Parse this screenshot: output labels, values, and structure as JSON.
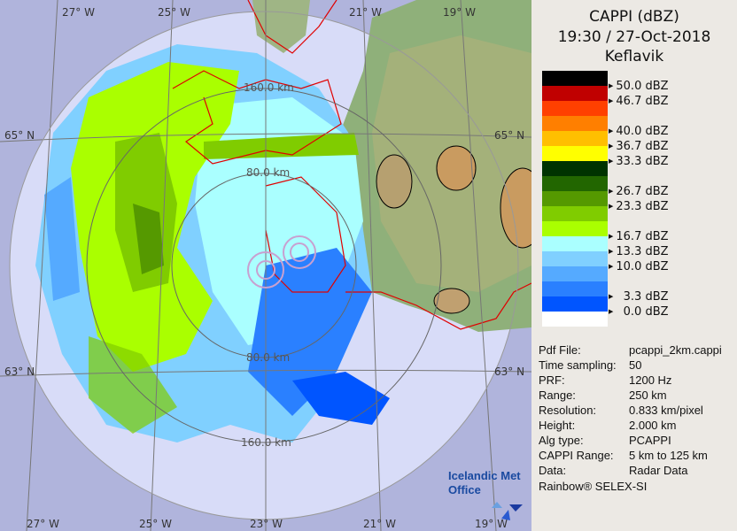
{
  "header": {
    "product": "CAPPI (dBZ)",
    "datetime": "19:30 / 27-Oct-2018",
    "site": "Keflavik"
  },
  "legend": [
    {
      "color": "#000000",
      "label": "50.0 dBZ"
    },
    {
      "color": "#c00000",
      "label": "46.7 dBZ"
    },
    {
      "color": "#ff4000",
      "label": ""
    },
    {
      "color": "#ff7f00",
      "label": "40.0 dBZ"
    },
    {
      "color": "#ffbf00",
      "label": "36.7 dBZ"
    },
    {
      "color": "#ffff00",
      "label": "33.3 dBZ"
    },
    {
      "color": "#003300",
      "label": ""
    },
    {
      "color": "#226600",
      "label": "26.7 dBZ"
    },
    {
      "color": "#559900",
      "label": "23.3 dBZ"
    },
    {
      "color": "#80cc00",
      "label": ""
    },
    {
      "color": "#aaff00",
      "label": "16.7 dBZ"
    },
    {
      "color": "#aaffff",
      "label": "13.3 dBZ"
    },
    {
      "color": "#80d0ff",
      "label": "10.0 dBZ"
    },
    {
      "color": "#55aaff",
      "label": ""
    },
    {
      "color": "#2a80ff",
      "label": "  3.3 dBZ"
    },
    {
      "color": "#0055ff",
      "label": "  0.0 dBZ"
    },
    {
      "color": "#ffffff",
      "label": ""
    }
  ],
  "info": [
    {
      "key": "Pdf File:",
      "value": "pcappi_2km.cappi"
    },
    {
      "key": "Time sampling:",
      "value": "50"
    },
    {
      "key": "PRF:",
      "value": "1200 Hz"
    },
    {
      "key": "Range:",
      "value": "250 km"
    },
    {
      "key": "Resolution:",
      "value": "0.833 km/pixel"
    },
    {
      "key": "Height:",
      "value": "2.000 km"
    },
    {
      "key": "Alg type:",
      "value": "PCAPPI"
    },
    {
      "key": "CAPPI Range:",
      "value": "5 km to 125 km"
    },
    {
      "key": "Data:",
      "value": "Radar Data"
    }
  ],
  "footer": "Rainbow® SELEX-SI",
  "map": {
    "top_lon_labels": [
      "27° W",
      "25° W",
      "21° W",
      "19° W"
    ],
    "bottom_lon_labels": [
      "27° W",
      "25° W",
      "23° W",
      "21° W",
      "19° W"
    ],
    "lat_labels": [
      "65° N",
      "63° N"
    ],
    "range_labels": [
      "160.0 km",
      "80.0 km",
      "80.0 km",
      "160.0 km"
    ],
    "logo": "Icelandic Met Office"
  }
}
